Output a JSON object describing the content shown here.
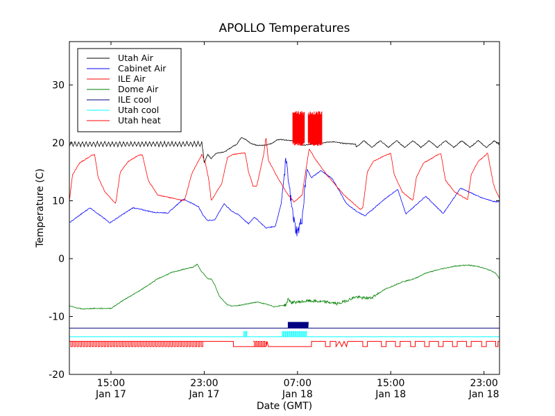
{
  "chart_data": {
    "type": "line",
    "title": "APOLLO Temperatures",
    "xlabel": "Date (GMT)",
    "ylabel": "Temperature (C)",
    "x_units": "hours since 00:00 Jan 17 (GMT)",
    "xlim": [
      11.43,
      48.33
    ],
    "ylim": [
      -20,
      37.5
    ],
    "grid": false,
    "legend_position": "top-left",
    "yticks": [
      {
        "value": -20,
        "label": "-20"
      },
      {
        "value": -10,
        "label": "-10"
      },
      {
        "value": 0,
        "label": "0"
      },
      {
        "value": 10,
        "label": "10"
      },
      {
        "value": 20,
        "label": "20"
      },
      {
        "value": 30,
        "label": "30"
      }
    ],
    "xticks": [
      {
        "value": 15,
        "label": "15:00",
        "sublabel": "Jan 17"
      },
      {
        "value": 23,
        "label": "23:00",
        "sublabel": "Jan 17"
      },
      {
        "value": 31,
        "label": "07:00",
        "sublabel": "Jan 18"
      },
      {
        "value": 39,
        "label": "15:00",
        "sublabel": "Jan 18"
      },
      {
        "value": 47,
        "label": "23:00",
        "sublabel": "Jan 18"
      }
    ],
    "series": [
      {
        "name": "Utah Air",
        "color": "#000000",
        "points": [
          [
            11.43,
            19.8
          ],
          [
            22.8,
            19.8
          ],
          [
            22.9,
            18.5
          ],
          [
            23.0,
            16.5
          ],
          [
            23.3,
            18.0
          ],
          [
            23.6,
            17.3
          ],
          [
            24.0,
            18.2
          ],
          [
            24.8,
            18.5
          ],
          [
            25.3,
            19.2
          ],
          [
            25.8,
            19.8
          ],
          [
            26.2,
            21.0
          ],
          [
            26.6,
            20.5
          ],
          [
            27.0,
            19.9
          ],
          [
            27.5,
            19.6
          ],
          [
            28.3,
            19.6
          ],
          [
            28.8,
            19.9
          ],
          [
            29.2,
            20.5
          ],
          [
            29.6,
            20.6
          ],
          [
            30.5,
            20.4
          ],
          [
            31.0,
            20.2
          ],
          [
            31.5,
            19.6
          ],
          [
            32.0,
            19.7
          ],
          [
            33.0,
            20.0
          ],
          [
            34.0,
            20.2
          ],
          [
            35.0,
            19.9
          ],
          [
            36.0,
            19.8
          ],
          [
            48.33,
            19.8
          ]
        ],
        "oscillation": {
          "from": 11.43,
          "to": 22.8,
          "amplitude": 0.4,
          "period_hours": 0.32
        },
        "oscillation2": {
          "from": 36.0,
          "to": 48.33,
          "amplitude": 0.6,
          "period_hours": 1.4
        }
      },
      {
        "name": "Cabinet Air",
        "color": "#0000ff",
        "points": [
          [
            11.43,
            6.2
          ],
          [
            13.2,
            8.8
          ],
          [
            14.9,
            6.2
          ],
          [
            16.9,
            8.8
          ],
          [
            18.7,
            8.0
          ],
          [
            19.9,
            7.9
          ],
          [
            21.2,
            10.3
          ],
          [
            22.5,
            9.0
          ],
          [
            22.9,
            7.5
          ],
          [
            23.3,
            6.6
          ],
          [
            23.9,
            6.7
          ],
          [
            24.7,
            9.5
          ],
          [
            25.3,
            8.3
          ],
          [
            26.0,
            7.5
          ],
          [
            26.8,
            6.0
          ],
          [
            27.3,
            7.2
          ],
          [
            28.3,
            5.3
          ],
          [
            29.1,
            5.6
          ],
          [
            29.6,
            9.5
          ],
          [
            30.0,
            17.0
          ],
          [
            30.5,
            9.0
          ],
          [
            30.8,
            5.5
          ],
          [
            31.0,
            4.5
          ],
          [
            31.4,
            7.0
          ],
          [
            31.8,
            15.5
          ],
          [
            32.2,
            14.0
          ],
          [
            33.0,
            15.2
          ],
          [
            34.0,
            13.8
          ],
          [
            35.2,
            9.5
          ],
          [
            36.2,
            8.0
          ],
          [
            36.8,
            7.4
          ],
          [
            38.3,
            10.0
          ],
          [
            39.6,
            12.0
          ],
          [
            40.3,
            7.7
          ],
          [
            42.0,
            10.8
          ],
          [
            43.5,
            7.8
          ],
          [
            45.0,
            12.2
          ],
          [
            46.8,
            10.5
          ],
          [
            48.0,
            9.8
          ],
          [
            48.33,
            9.8
          ]
        ]
      },
      {
        "name": "ILE Air",
        "color": "#ff0000",
        "points": [
          [
            11.43,
            10.0
          ],
          [
            11.7,
            14.5
          ],
          [
            12.3,
            16.5
          ],
          [
            13.3,
            17.8
          ],
          [
            13.6,
            18.0
          ],
          [
            13.9,
            14.0
          ],
          [
            14.5,
            11.5
          ],
          [
            15.4,
            9.5
          ],
          [
            15.8,
            15.0
          ],
          [
            16.5,
            16.8
          ],
          [
            17.4,
            17.9
          ],
          [
            17.7,
            17.9
          ],
          [
            18.2,
            13.5
          ],
          [
            19.0,
            11.0
          ],
          [
            21.3,
            10.0
          ],
          [
            21.9,
            14.5
          ],
          [
            22.4,
            16.5
          ],
          [
            22.8,
            18.0
          ],
          [
            23.1,
            16.5
          ],
          [
            23.4,
            13.5
          ],
          [
            23.6,
            10.0
          ],
          [
            24.5,
            13.0
          ],
          [
            25.0,
            17.5
          ],
          [
            25.5,
            18.0
          ],
          [
            26.5,
            18.3
          ],
          [
            26.8,
            15.0
          ],
          [
            27.2,
            12.5
          ],
          [
            27.5,
            12.5
          ],
          [
            28.1,
            18.0
          ],
          [
            28.3,
            21.0
          ],
          [
            28.5,
            17.0
          ],
          [
            29.3,
            14.0
          ],
          [
            30.2,
            11.0
          ],
          [
            30.7,
            9.8
          ],
          [
            31.4,
            11.0
          ],
          [
            32.0,
            19.0
          ],
          [
            32.6,
            17.0
          ],
          [
            33.5,
            14.5
          ],
          [
            35.0,
            11.0
          ],
          [
            36.4,
            8.5
          ],
          [
            36.6,
            8.8
          ],
          [
            37.0,
            15.0
          ],
          [
            37.5,
            16.8
          ],
          [
            38.5,
            17.8
          ],
          [
            39.0,
            18.2
          ],
          [
            39.3,
            14.5
          ],
          [
            40.0,
            11.5
          ],
          [
            40.9,
            10.0
          ],
          [
            41.2,
            14.0
          ],
          [
            41.8,
            16.5
          ],
          [
            42.9,
            17.8
          ],
          [
            43.3,
            18.2
          ],
          [
            43.7,
            13.5
          ],
          [
            44.5,
            11.5
          ],
          [
            45.6,
            10.2
          ],
          [
            45.9,
            14.5
          ],
          [
            46.5,
            16.8
          ],
          [
            47.2,
            18.0
          ],
          [
            47.3,
            18.3
          ],
          [
            47.8,
            13.0
          ],
          [
            48.0,
            11.8
          ],
          [
            48.33,
            10.5
          ]
        ],
        "noisy_band": {
          "from": 30.6,
          "to": 33.1,
          "low": 19.5,
          "high": 25.5
        }
      },
      {
        "name": "Dome Air",
        "color": "#008000",
        "points": [
          [
            11.43,
            -8.2
          ],
          [
            12.5,
            -8.7
          ],
          [
            13.5,
            -8.6
          ],
          [
            15.0,
            -8.6
          ],
          [
            16.2,
            -7.0
          ],
          [
            17.5,
            -5.5
          ],
          [
            19.0,
            -3.5
          ],
          [
            20.2,
            -2.4
          ],
          [
            21.3,
            -1.8
          ],
          [
            22.0,
            -1.5
          ],
          [
            22.4,
            -1.0
          ],
          [
            22.7,
            -2.0
          ],
          [
            23.3,
            -3.5
          ],
          [
            23.6,
            -3.5
          ],
          [
            23.9,
            -4.5
          ],
          [
            24.3,
            -6.5
          ],
          [
            25.0,
            -8.0
          ],
          [
            25.5,
            -8.2
          ],
          [
            26.5,
            -7.9
          ],
          [
            27.5,
            -7.5
          ],
          [
            28.0,
            -7.7
          ],
          [
            29.0,
            -8.3
          ],
          [
            30.0,
            -8.0
          ],
          [
            30.2,
            -7.0
          ],
          [
            30.5,
            -7.6
          ],
          [
            31.0,
            -7.5
          ],
          [
            32.0,
            -7.3
          ],
          [
            33.5,
            -7.5
          ],
          [
            34.5,
            -7.8
          ],
          [
            35.5,
            -7.0
          ],
          [
            36.0,
            -6.6
          ],
          [
            36.6,
            -6.8
          ],
          [
            37.3,
            -6.8
          ],
          [
            38.5,
            -5.3
          ],
          [
            40.0,
            -4.0
          ],
          [
            41.0,
            -3.5
          ],
          [
            42.0,
            -2.5
          ],
          [
            43.3,
            -1.8
          ],
          [
            44.5,
            -1.3
          ],
          [
            45.6,
            -1.1
          ],
          [
            46.6,
            -1.4
          ],
          [
            47.5,
            -2.0
          ],
          [
            48.0,
            -2.5
          ],
          [
            48.33,
            -3.5
          ]
        ]
      },
      {
        "name": "ILE cool",
        "color": "#000080",
        "baseline": -12.0,
        "pulses": [
          {
            "from": 30.2,
            "to": 31.9,
            "high": -11.0
          }
        ]
      },
      {
        "name": "Utah cool",
        "color": "#00ffff",
        "baseline": -13.5,
        "pulses": [
          {
            "from": 26.4,
            "to": 26.6,
            "high": -12.6
          },
          {
            "from": 29.7,
            "to": 31.8,
            "high": -12.6
          }
        ]
      },
      {
        "name": "Utah heat",
        "color": "#ff0000",
        "baseline": -14.3,
        "low": -15.2,
        "square_wave_segments": [
          {
            "from": 11.43,
            "to": 22.9,
            "period_hours": 0.26
          },
          {
            "from": 27.2,
            "to": 28.3,
            "period_hours": 0.22
          }
        ],
        "steps": [
          [
            11.43,
            -14.3
          ],
          [
            22.9,
            -14.3
          ],
          [
            25.5,
            -14.3
          ],
          [
            25.5,
            -15.2
          ],
          [
            27.2,
            -15.2
          ],
          [
            28.3,
            -15.2
          ],
          [
            28.4,
            -14.3
          ],
          [
            28.5,
            -15.2
          ],
          [
            32.2,
            -15.2
          ],
          [
            32.2,
            -14.3
          ],
          [
            33.4,
            -14.3
          ],
          [
            33.4,
            -15.2
          ],
          [
            33.8,
            -15.2
          ],
          [
            33.8,
            -14.3
          ],
          [
            34.3,
            -14.3
          ],
          [
            34.3,
            -15.2
          ],
          [
            34.6,
            -14.3
          ],
          [
            34.8,
            -15.2
          ],
          [
            35.0,
            -14.3
          ],
          [
            35.2,
            -15.2
          ],
          [
            35.3,
            -14.3
          ],
          [
            36.6,
            -14.3
          ],
          [
            36.6,
            -15.2
          ],
          [
            37.0,
            -15.2
          ],
          [
            37.0,
            -14.3
          ],
          [
            38.2,
            -14.3
          ],
          [
            38.2,
            -15.2
          ],
          [
            38.6,
            -15.2
          ],
          [
            38.6,
            -14.3
          ],
          [
            39.4,
            -14.3
          ],
          [
            39.4,
            -15.2
          ],
          [
            39.8,
            -15.2
          ],
          [
            39.8,
            -14.3
          ],
          [
            40.7,
            -14.3
          ],
          [
            40.7,
            -15.2
          ],
          [
            41.1,
            -15.2
          ],
          [
            41.1,
            -14.3
          ],
          [
            41.9,
            -14.3
          ],
          [
            41.9,
            -15.2
          ],
          [
            42.3,
            -15.2
          ],
          [
            42.3,
            -14.3
          ],
          [
            43.1,
            -14.3
          ],
          [
            43.1,
            -15.2
          ],
          [
            43.5,
            -15.2
          ],
          [
            43.5,
            -14.3
          ],
          [
            44.3,
            -14.3
          ],
          [
            44.3,
            -15.2
          ],
          [
            44.7,
            -15.2
          ],
          [
            44.7,
            -14.3
          ],
          [
            45.5,
            -14.3
          ],
          [
            45.5,
            -15.2
          ],
          [
            45.9,
            -15.2
          ],
          [
            45.9,
            -14.3
          ],
          [
            46.8,
            -14.3
          ],
          [
            46.8,
            -15.2
          ],
          [
            47.2,
            -15.2
          ],
          [
            47.2,
            -14.3
          ],
          [
            48.0,
            -14.3
          ],
          [
            48.0,
            -15.2
          ],
          [
            48.2,
            -15.2
          ],
          [
            48.2,
            -14.3
          ],
          [
            48.33,
            -14.3
          ]
        ]
      }
    ]
  }
}
